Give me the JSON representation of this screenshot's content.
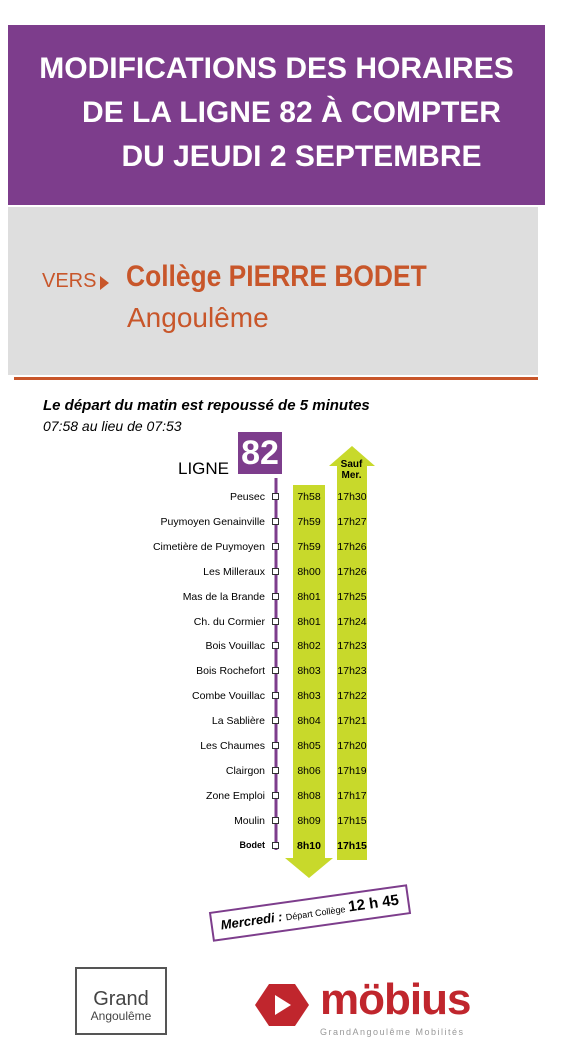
{
  "header": {
    "title_lines": [
      "MODIFICATIONS DES HORAIRES",
      "DE LA LIGNE 82 À COMPTER",
      "DU JEUDI 2 SEPTEMBRE"
    ]
  },
  "destination": {
    "prefix": "VERS",
    "name": "Collège PIERRE BODET",
    "city": "Angoulême"
  },
  "notice": {
    "headline": "Le départ du matin est repoussé de 5 minutes",
    "detail": "07:58 au lieu de 07:53"
  },
  "line": {
    "label": "LIGNE",
    "number": "82"
  },
  "return_header": [
    "Sauf",
    "Mer."
  ],
  "stops": [
    {
      "name": "Peusec",
      "morning": "7h58",
      "evening": "17h30"
    },
    {
      "name": "Puymoyen Genainville",
      "morning": "7h59",
      "evening": "17h27"
    },
    {
      "name": "Cimetière de Puymoyen",
      "morning": "7h59",
      "evening": "17h26"
    },
    {
      "name": "Les Milleraux",
      "morning": "8h00",
      "evening": "17h26"
    },
    {
      "name": "Mas de la Brande",
      "morning": "8h01",
      "evening": "17h25"
    },
    {
      "name": "Ch. du Cormier",
      "morning": "8h01",
      "evening": "17h24"
    },
    {
      "name": "Bois Vouillac",
      "morning": "8h02",
      "evening": "17h23"
    },
    {
      "name": "Bois Rochefort",
      "morning": "8h03",
      "evening": "17h23"
    },
    {
      "name": "Combe Vouillac",
      "morning": "8h03",
      "evening": "17h22"
    },
    {
      "name": "La Sablière",
      "morning": "8h04",
      "evening": "17h21"
    },
    {
      "name": "Les Chaumes",
      "morning": "8h05",
      "evening": "17h20"
    },
    {
      "name": "Clairgon",
      "morning": "8h06",
      "evening": "17h19"
    },
    {
      "name": "Zone Emploi",
      "morning": "8h08",
      "evening": "17h17"
    },
    {
      "name": "Moulin",
      "morning": "8h09",
      "evening": "17h15"
    },
    {
      "name": "Bodet",
      "morning": "8h10",
      "evening": "17h15"
    }
  ],
  "wednesday": {
    "day": "Mercredi :",
    "note": "Départ Collège",
    "time": "12 h 45"
  },
  "logos": {
    "grand": [
      "Grand",
      "Angoulême"
    ],
    "mobius": "möbius",
    "mobius_tagline": "GrandAngoulême Mobilités"
  }
}
